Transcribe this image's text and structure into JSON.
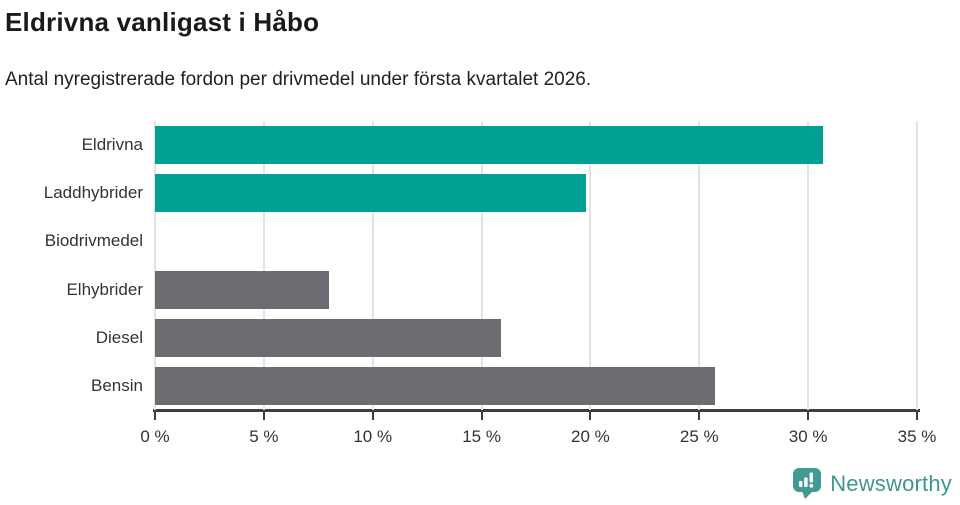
{
  "header": {
    "title": "Eldrivna vanligast i Håbo",
    "subtitle": "Antal nyregistrerade fordon per drivmedel under första kvartalet 2026."
  },
  "chart_data": {
    "type": "bar",
    "orientation": "horizontal",
    "title": "Eldrivna vanligast i Håbo",
    "subtitle": "Antal nyregistrerade fordon per drivmedel under första kvartalet 2026.",
    "categories": [
      "Eldrivna",
      "Laddhybrider",
      "Biodrivmedel",
      "Elhybrider",
      "Diesel",
      "Bensin"
    ],
    "values": [
      30.7,
      19.8,
      0,
      8.0,
      15.9,
      25.7
    ],
    "unit": "%",
    "bar_colors": [
      "#00a094",
      "#00a094",
      "#6e6c72",
      "#6e6c72",
      "#6e6c72",
      "#6e6c72"
    ],
    "highlight_color": "#00a094",
    "default_color": "#6e6c72",
    "xlabel": "",
    "ylabel": "",
    "xlim": [
      0,
      35
    ],
    "x_ticks": [
      0,
      5,
      10,
      15,
      20,
      25,
      30,
      35
    ],
    "x_tick_labels": [
      "0 %",
      "5 %",
      "10 %",
      "15 %",
      "20 %",
      "25 %",
      "30 %",
      "35 %"
    ],
    "grid": true,
    "gridline_color": "#e3e3e3",
    "axis_color": "#3d3d3d",
    "legend_position": "none"
  },
  "footer": {
    "brand": "Newsworthy",
    "brand_color": "#3e968f"
  }
}
